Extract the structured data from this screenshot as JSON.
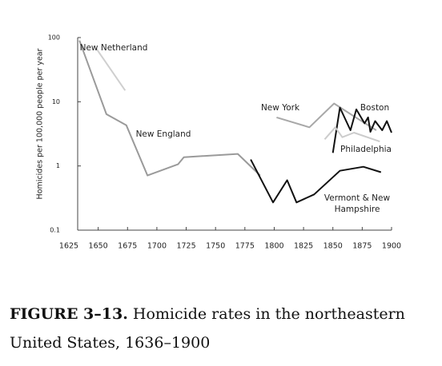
{
  "chart_data": {
    "type": "line",
    "y_label": "Homicides per 100,000 people per year",
    "xlim": [
      1625,
      1900
    ],
    "xticks": [
      1625,
      1650,
      1675,
      1700,
      1725,
      1750,
      1775,
      1800,
      1825,
      1850,
      1875,
      1900
    ],
    "ylim": [
      0.1,
      100
    ],
    "yticks": [
      0.1,
      1,
      10,
      100
    ],
    "y_scale": "log",
    "grid": false,
    "series": [
      {
        "name": "New Netherland",
        "color": "#cfcfcf",
        "x": [
          1648,
          1673
        ],
        "values": [
          69,
          15
        ]
      },
      {
        "name": "New England",
        "color": "#9a9a9a",
        "x": [
          1634,
          1657,
          1674,
          1692,
          1718,
          1723,
          1769,
          1788
        ],
        "values": [
          90,
          6.4,
          4.3,
          0.71,
          1.06,
          1.37,
          1.54,
          0.71
        ]
      },
      {
        "name": "New York",
        "color": "#a8a8a8",
        "x": [
          1802,
          1830,
          1851,
          1867,
          1887
        ],
        "values": [
          5.7,
          4.0,
          9.4,
          6.1,
          3.6
        ]
      },
      {
        "name": "Boston",
        "color": "#111111",
        "x": [
          1850,
          1856,
          1865,
          1870,
          1877,
          1880,
          1882,
          1886,
          1892,
          1896,
          1900
        ],
        "values": [
          1.6,
          8.1,
          3.6,
          7.6,
          4.6,
          5.7,
          3.4,
          5.0,
          3.6,
          5.0,
          3.3
        ]
      },
      {
        "name": "Philadelphia",
        "color": "#cccccc",
        "x": [
          1843,
          1852,
          1858,
          1868,
          1890
        ],
        "values": [
          2.6,
          4.0,
          2.8,
          3.3,
          2.4
        ]
      },
      {
        "name": "Vermont & New Hampshire",
        "color": "#111111",
        "x": [
          1780,
          1799,
          1811,
          1819,
          1834,
          1856,
          1876,
          1891
        ],
        "values": [
          1.26,
          0.27,
          0.6,
          0.27,
          0.36,
          0.84,
          0.97,
          0.8
        ]
      }
    ]
  },
  "caption": {
    "label": "FIGURE 3–13.",
    "text": "Homicide rates in the northeastern United States, 1636–1900"
  }
}
